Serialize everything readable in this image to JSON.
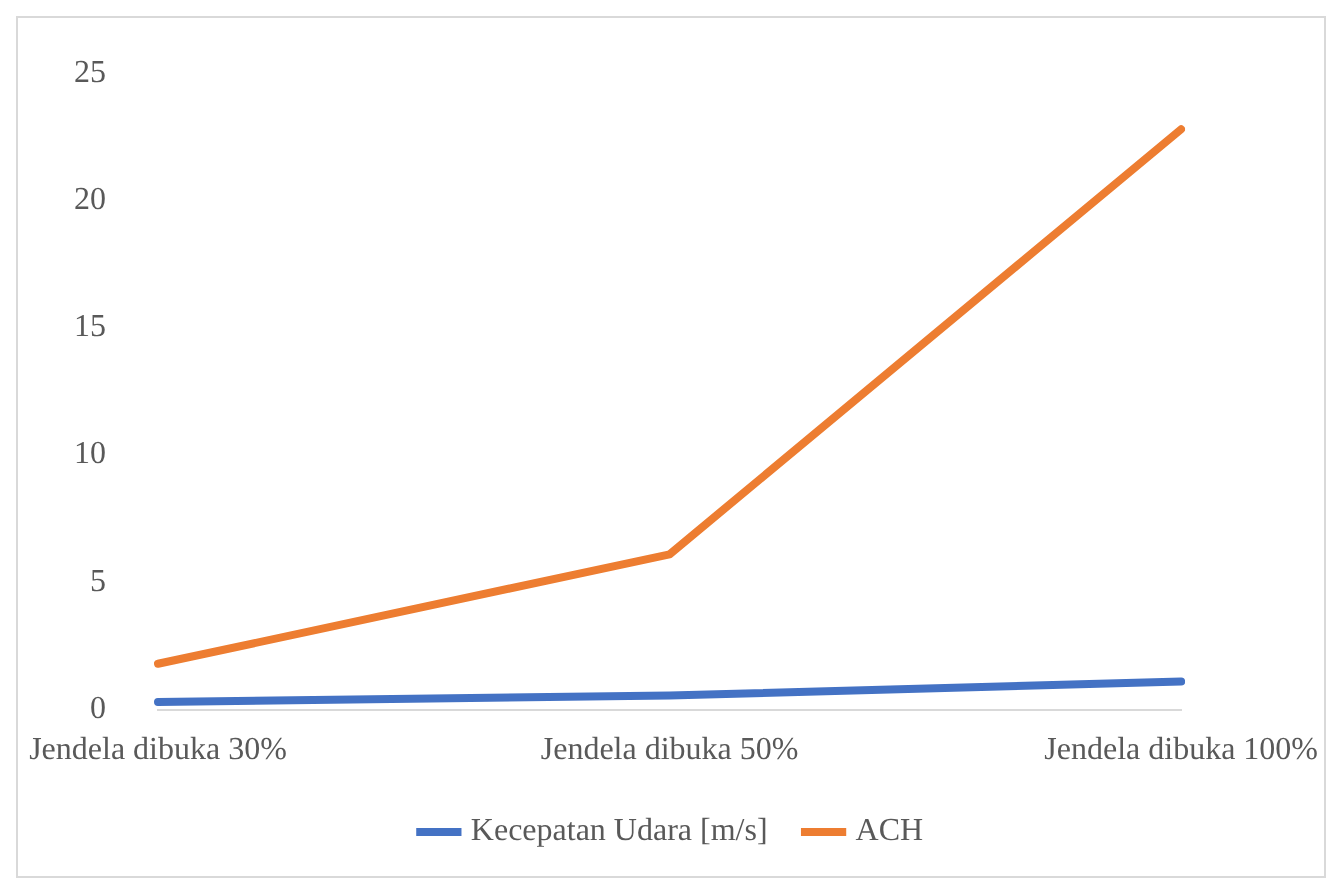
{
  "chart_data": {
    "type": "line",
    "categories": [
      "Jendela dibuka 30%",
      "Jendela dibuka 50%",
      "Jendela dibuka 100%"
    ],
    "series": [
      {
        "name": "Kecepatan Udara [m/s]",
        "color": "#4472c4",
        "values": [
          0.3,
          0.55,
          1.1
        ]
      },
      {
        "name": "ACH",
        "color": "#ed7d31",
        "values": [
          1.8,
          6.1,
          22.8
        ]
      }
    ],
    "ylim": [
      0,
      25
    ],
    "yticks": [
      0,
      5,
      10,
      15,
      20,
      25
    ],
    "grid": false,
    "legend": "bottom",
    "marker": "none",
    "line_style": "solid"
  }
}
